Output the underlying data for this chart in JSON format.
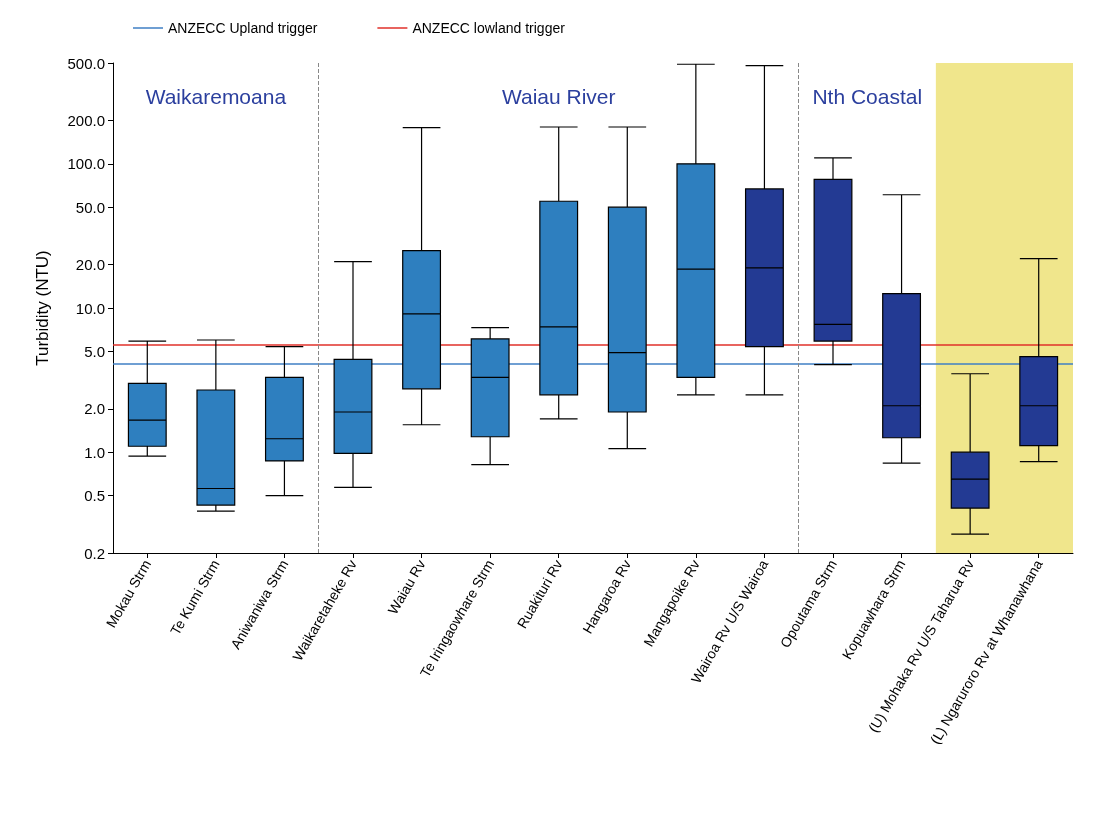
{
  "chart_data": {
    "type": "box",
    "ylabel": "Turbidity (NTU)",
    "categories": [
      "Mokau Strm",
      "Te Kumi Strm",
      "Aniwaniwa Strm",
      "Waikaretaheke Rv",
      "Waiau Rv",
      "Te Iringaowhare Strm",
      "Ruakituri Rv",
      "Hangaroa Rv",
      "Mangapoike Rv",
      "Wairoa Rv U/S Wairoa",
      "Opoutama Strm",
      "Kopuawhara Strm",
      "(U) Mohaka Rv U/S Taharua Rv",
      "(L) Ngaruroro Rv at Whanawhana"
    ],
    "boxes": [
      {
        "low": 0.94,
        "q1": 1.1,
        "median": 1.67,
        "q3": 3.0,
        "high": 5.9
      },
      {
        "low": 0.39,
        "q1": 0.43,
        "median": 0.56,
        "q3": 2.7,
        "high": 6.0
      },
      {
        "low": 0.5,
        "q1": 0.87,
        "median": 1.24,
        "q3": 3.3,
        "high": 5.4
      },
      {
        "low": 0.57,
        "q1": 0.98,
        "median": 1.9,
        "q3": 4.4,
        "high": 21
      },
      {
        "low": 1.55,
        "q1": 2.75,
        "median": 9.1,
        "q3": 25,
        "high": 178
      },
      {
        "low": 0.82,
        "q1": 1.28,
        "median": 3.3,
        "q3": 6.1,
        "high": 7.3
      },
      {
        "low": 1.7,
        "q1": 2.5,
        "median": 7.4,
        "q3": 55,
        "high": 180
      },
      {
        "low": 1.06,
        "q1": 1.9,
        "median": 4.9,
        "q3": 50,
        "high": 180
      },
      {
        "low": 2.5,
        "q1": 3.3,
        "median": 18.6,
        "q3": 100,
        "high": 490
      },
      {
        "low": 2.5,
        "q1": 5.4,
        "median": 19,
        "q3": 67,
        "high": 480
      },
      {
        "low": 4.05,
        "q1": 5.9,
        "median": 7.7,
        "q3": 78,
        "high": 110
      },
      {
        "low": 0.84,
        "q1": 1.26,
        "median": 2.1,
        "q3": 12.6,
        "high": 61
      },
      {
        "low": 0.27,
        "q1": 0.41,
        "median": 0.65,
        "q3": 1.0,
        "high": 3.5
      },
      {
        "low": 0.86,
        "q1": 1.11,
        "median": 2.1,
        "q3": 4.6,
        "high": 22
      }
    ],
    "colors": [
      "#2e7fbf",
      "#2e7fbf",
      "#2e7fbf",
      "#2e7fbf",
      "#2e7fbf",
      "#2e7fbf",
      "#2e7fbf",
      "#2e7fbf",
      "#2e7fbf",
      "#233a93",
      "#233a93",
      "#233a93",
      "#233a93",
      "#233a93"
    ],
    "log": "y",
    "ylim": [
      0.2,
      500
    ],
    "yticks": [
      0.2,
      0.5,
      {
        "value": 1,
        "label": "1.0"
      },
      {
        "value": 2,
        "label": "2.0"
      },
      {
        "value": 5,
        "label": "5.0"
      },
      {
        "value": 10,
        "label": "10.0"
      },
      {
        "value": 20,
        "label": "20.0"
      },
      {
        "value": 50,
        "label": "50.0"
      },
      {
        "value": 100,
        "label": "100.0"
      },
      {
        "value": 200,
        "label": "200.0"
      },
      {
        "value": 500,
        "label": "500.0"
      }
    ],
    "ref_lines": [
      {
        "axis": "y",
        "value": 4.1,
        "label": "ANZECC Upland trigger",
        "color": "#3f7fc4"
      },
      {
        "axis": "y",
        "value": 5.6,
        "label": "ANZECC lowland trigger",
        "color": "#e0302a"
      }
    ],
    "bands": [
      {
        "axis": "x",
        "from": "(U) Mohaka Rv U/S Taharua Rv",
        "to": "(L) Ngaruroro Rv at Whanawhana",
        "color": "#f0e68c"
      }
    ],
    "annotations": [
      "Waikaremoana",
      "Waiau River",
      "Nth Coastal"
    ],
    "legend": "top left",
    "grid": false
  }
}
